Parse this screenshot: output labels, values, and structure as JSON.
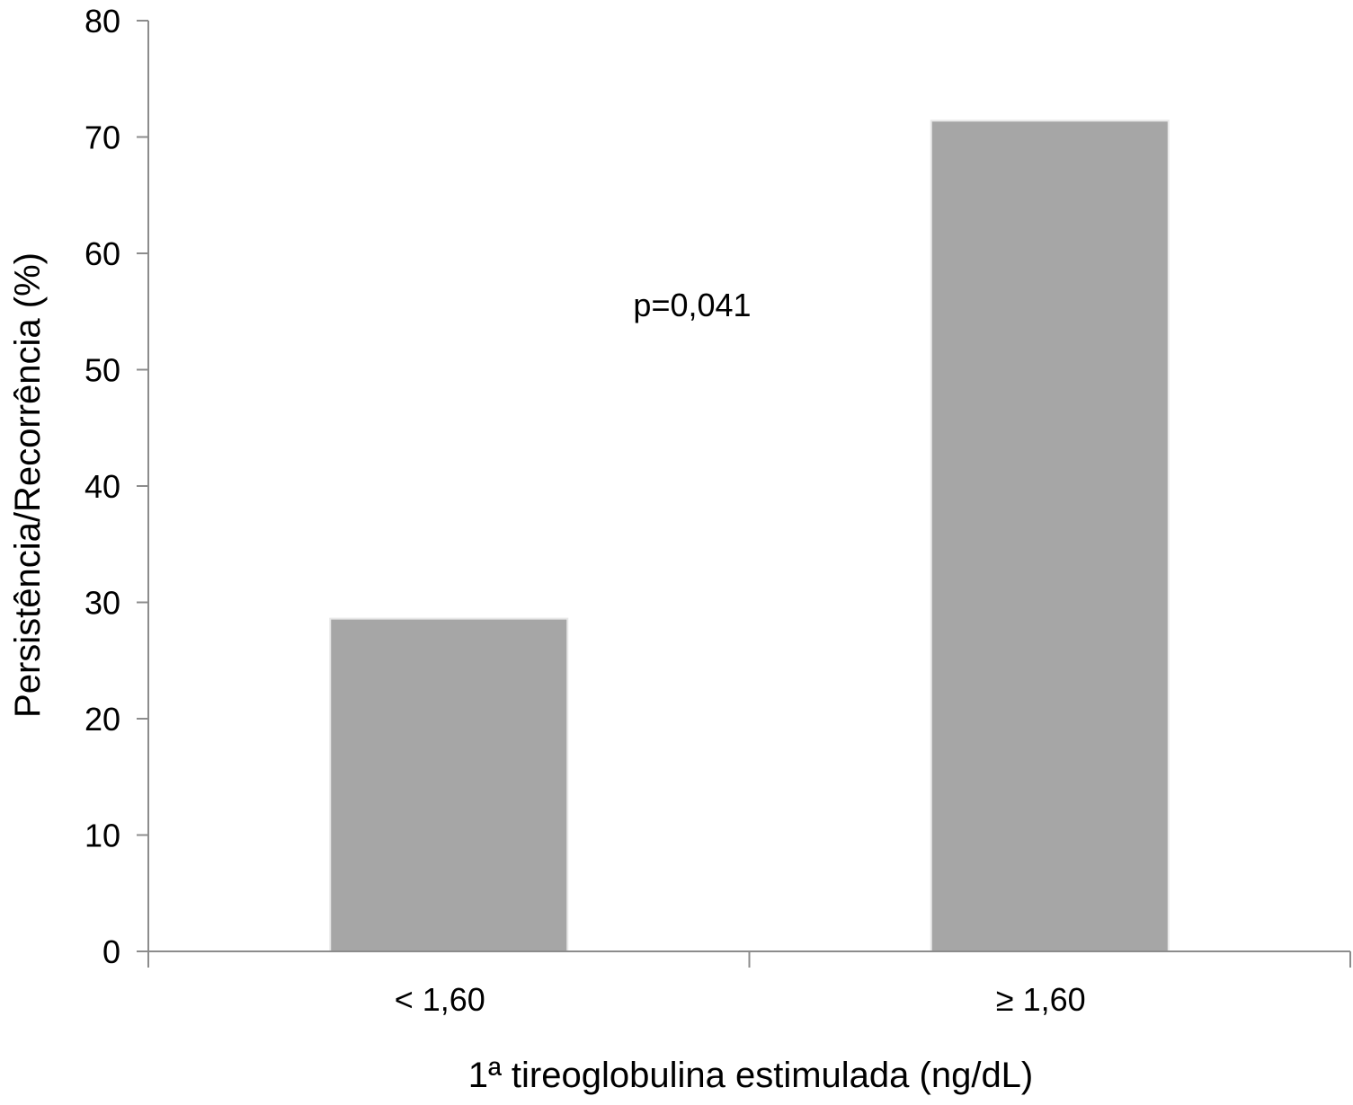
{
  "chart_data": {
    "type": "bar",
    "categories": [
      "< 1,60",
      "≥ 1,60"
    ],
    "values": [
      28.6,
      71.4
    ],
    "title": "",
    "xlabel": "1ª tireoglobulina estimulada (ng/dL)",
    "ylabel": "Persistência/Recorrência (%)",
    "ylim": [
      0,
      80
    ],
    "yticks": [
      0,
      10,
      20,
      30,
      40,
      50,
      60,
      70,
      80
    ],
    "grid": false,
    "legend": "none",
    "bar_color": "#a6a6a6",
    "annotation": "p=0,041"
  }
}
